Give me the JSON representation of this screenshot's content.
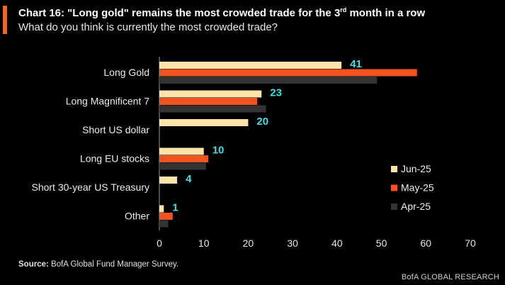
{
  "header": {
    "title_pre": "Chart 16: \"Long gold\" remains the most crowded trade for the 3",
    "title_sup": "rd",
    "title_post": " month in a row",
    "subtitle": "What do you think is currently the most crowded trade?"
  },
  "footer": {
    "source_label": "Source:",
    "source_text": " BofA Global Fund Manager Survey.",
    "brand": "BofA GLOBAL RESEARCH"
  },
  "colors": {
    "accent": "#f26522",
    "label_highlight": "#3ee0e6"
  },
  "chart_data": {
    "type": "bar",
    "orientation": "horizontal",
    "categories": [
      "Long Gold",
      "Long Magnificent 7",
      "Short US dollar",
      "Long EU stocks",
      "Short 30-year US Treasury",
      "Other"
    ],
    "series": [
      {
        "name": "Jun-25",
        "color": "#fce4a8",
        "values": [
          41,
          23,
          20,
          10,
          4,
          1
        ]
      },
      {
        "name": "May-25",
        "color": "#f2531f",
        "values": [
          58,
          22,
          0,
          11,
          0,
          3
        ]
      },
      {
        "name": "Apr-25",
        "color": "#333333",
        "values": [
          49,
          24,
          0,
          10.5,
          0,
          2
        ]
      }
    ],
    "data_labels": [
      "41",
      "23",
      "20",
      "10",
      "4",
      "1"
    ],
    "xlim": [
      0,
      70
    ],
    "xticks": [
      "0",
      "10",
      "20",
      "30",
      "40",
      "50",
      "60",
      "70"
    ],
    "legend_position": "right"
  }
}
